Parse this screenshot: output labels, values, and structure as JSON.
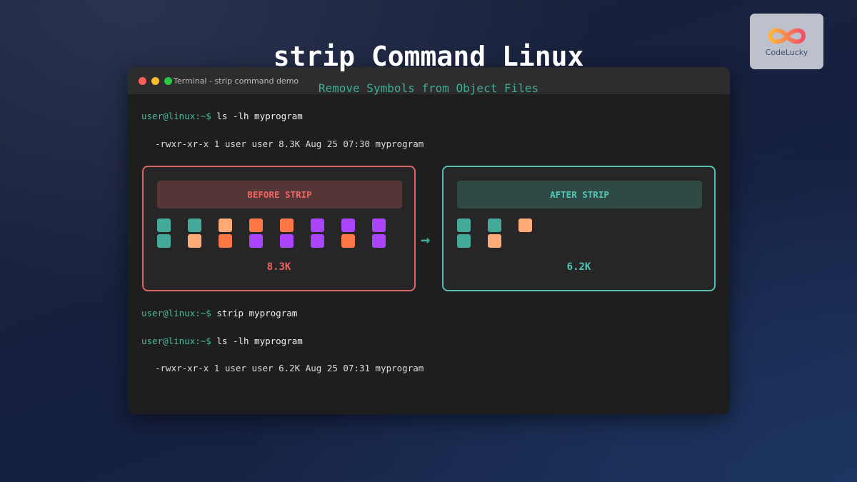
{
  "title": "strip Command Linux",
  "subtitle": "Remove Symbols from Object Files",
  "logo": {
    "text": "CodeLucky"
  },
  "window": {
    "title": "Terminal - strip command demo"
  },
  "terminal": {
    "prompt": "user@linux:~$",
    "cmd1": "ls -lh myprogram",
    "out1": "-rwxr-xr-x 1 user user 8.3K Aug 25 07:30 myprogram",
    "cmd2": "strip myprogram",
    "cmd3": "ls -lh myprogram",
    "out3": "-rwxr-xr-x 1 user user 6.2K Aug 25 07:31 myprogram"
  },
  "colors": {
    "teal": "#45a99a",
    "light_orange": "#ffaa77",
    "orange": "#ff7744",
    "purple": "#aa44ff",
    "before": "#e06666",
    "after": "#4fc0b0"
  },
  "before": {
    "label": "BEFORE STRIP",
    "size": "8.3K",
    "blocks": [
      [
        "teal",
        "teal",
        "light_orange",
        "orange",
        "orange",
        "purple",
        "purple",
        "purple"
      ],
      [
        "teal",
        "light_orange",
        "orange",
        "purple",
        "purple",
        "purple",
        "orange",
        "purple"
      ]
    ]
  },
  "after": {
    "label": "AFTER STRIP",
    "size": "6.2K",
    "blocks": [
      [
        "teal",
        "teal",
        "light_orange"
      ],
      [
        "teal",
        "light_orange"
      ]
    ]
  },
  "arrow": "→"
}
